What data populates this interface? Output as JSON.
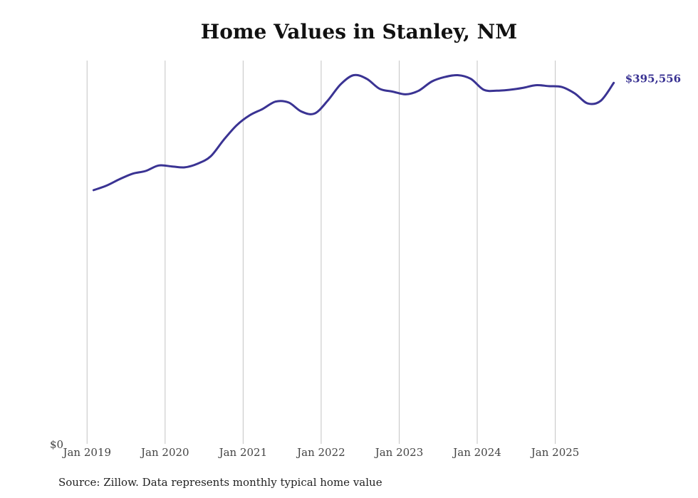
{
  "chart_data": {
    "type": "line",
    "title": "Home Values in Stanley, NM",
    "source": "Source: Zillow. Data represents monthly typical home value",
    "ylim": [
      0,
      420000
    ],
    "xlim": [
      "2018-11",
      "2025-12"
    ],
    "y_tick_label": "$0",
    "x_ticks": [
      {
        "date": "2019-01",
        "label": "Jan 2019"
      },
      {
        "date": "2020-01",
        "label": "Jan 2020"
      },
      {
        "date": "2021-01",
        "label": "Jan 2021"
      },
      {
        "date": "2022-01",
        "label": "Jan 2022"
      },
      {
        "date": "2023-01",
        "label": "Jan 2023"
      },
      {
        "date": "2024-01",
        "label": "Jan 2024"
      },
      {
        "date": "2025-01",
        "label": "Jan 2025"
      }
    ],
    "grid": {
      "x": true,
      "y": false
    },
    "end_label": "$395,556",
    "line_color": "#3a3393",
    "series": [
      {
        "x": [
          "2019-02",
          "2019-04",
          "2019-06",
          "2019-08",
          "2019-10",
          "2019-12",
          "2020-02",
          "2020-04",
          "2020-06",
          "2020-08",
          "2020-10",
          "2020-12",
          "2021-02",
          "2021-04",
          "2021-06",
          "2021-08",
          "2021-10",
          "2021-12",
          "2022-02",
          "2022-04",
          "2022-06",
          "2022-08",
          "2022-10",
          "2022-12",
          "2023-02",
          "2023-04",
          "2023-06",
          "2023-08",
          "2023-10",
          "2023-12",
          "2024-02",
          "2024-04",
          "2024-06",
          "2024-08",
          "2024-10",
          "2024-12",
          "2025-02",
          "2025-04",
          "2025-06",
          "2025-08",
          "2025-10"
        ],
        "values": [
          278000,
          283000,
          290000,
          296000,
          299000,
          305000,
          304000,
          303000,
          307000,
          315000,
          333000,
          349000,
          360000,
          367000,
          375000,
          374000,
          364000,
          362000,
          376000,
          394000,
          404000,
          400000,
          389000,
          386000,
          383000,
          387000,
          397000,
          402000,
          404000,
          400000,
          388000,
          387000,
          388000,
          390000,
          393000,
          392000,
          391000,
          384000,
          373000,
          376000,
          395556
        ]
      }
    ]
  }
}
